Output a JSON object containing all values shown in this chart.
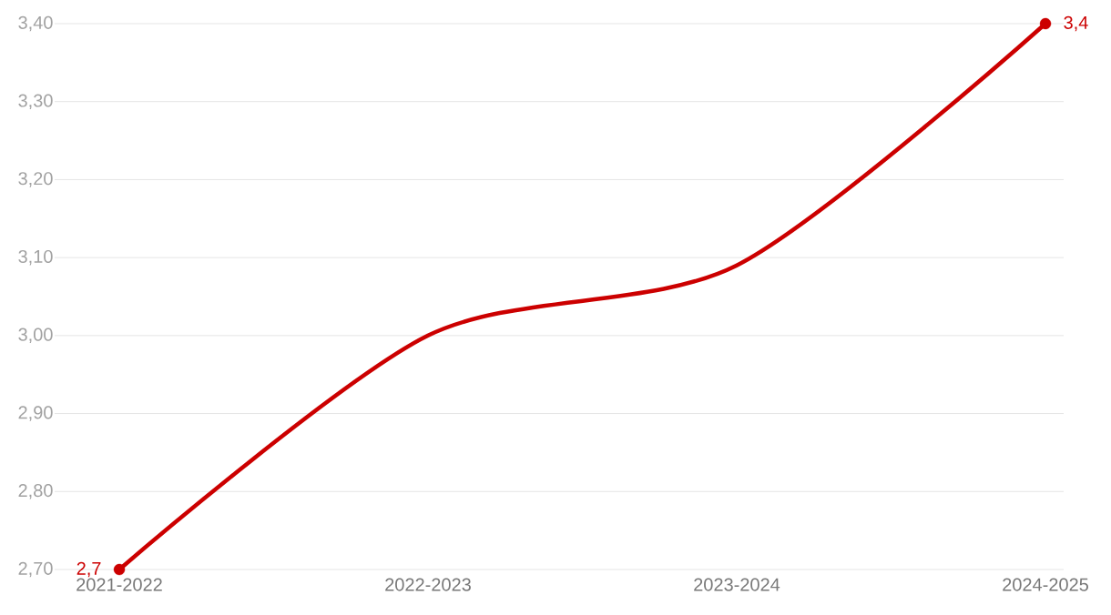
{
  "chart_data": {
    "type": "line",
    "categories": [
      "2021-2022",
      "2022-2023",
      "2023-2024",
      "2024-2025"
    ],
    "series": [
      {
        "color": "#cc0000",
        "values": [
          2.7,
          3.0,
          3.09,
          3.4
        ],
        "value_labels": [
          "2,7",
          null,
          null,
          "3,4"
        ]
      }
    ],
    "ylim": [
      2.7,
      3.4
    ],
    "yticks": [
      {
        "value": 2.7,
        "label": "2,70"
      },
      {
        "value": 2.8,
        "label": "2,80"
      },
      {
        "value": 2.9,
        "label": "2,90"
      },
      {
        "value": 3.0,
        "label": "3,00"
      },
      {
        "value": 3.1,
        "label": "3,10"
      },
      {
        "value": 3.2,
        "label": "3,20"
      },
      {
        "value": 3.3,
        "label": "3,30"
      },
      {
        "value": 3.4,
        "label": "3,40"
      }
    ],
    "grid": "y",
    "marker": "circle",
    "line_style": "solid"
  }
}
